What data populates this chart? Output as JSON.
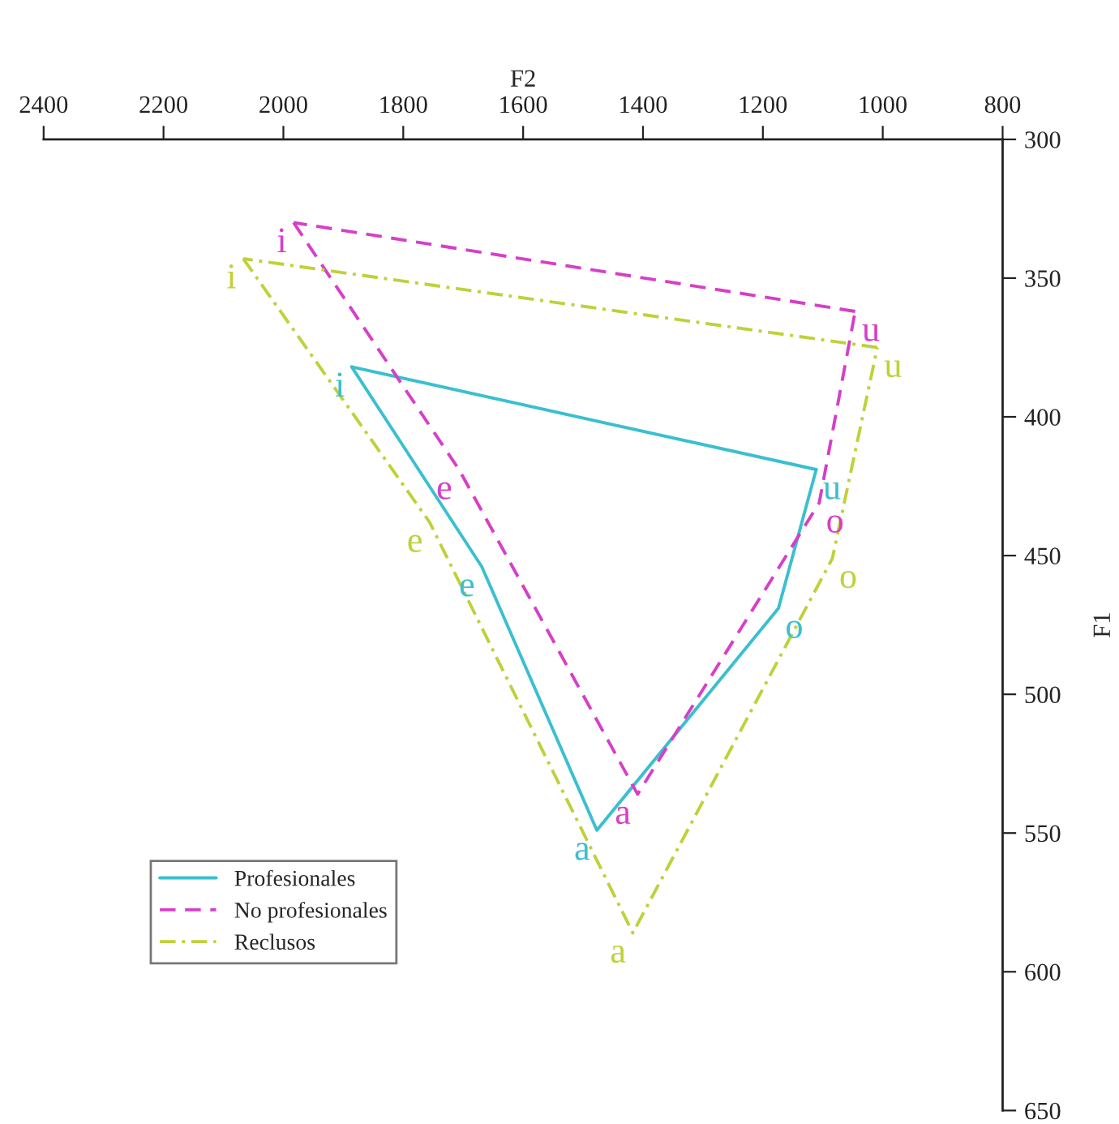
{
  "chart_data": {
    "type": "line",
    "xlabel": "F2",
    "ylabel": "F1",
    "xlim": [
      2400,
      800
    ],
    "xticks": [
      2400,
      2200,
      2000,
      1800,
      1600,
      1400,
      1200,
      1000,
      800
    ],
    "ylim": [
      650,
      300
    ],
    "yticks": [
      300,
      350,
      400,
      450,
      500,
      550,
      600,
      650
    ],
    "grid": false,
    "legend": "bottom left",
    "marker": "none",
    "series": [
      {
        "name": "Profesionales",
        "color": "#3bbfcf",
        "line_style": "solid",
        "x": [
          1886,
          1669,
          1477,
          1174,
          1111
        ],
        "values": [
          382,
          454,
          549,
          469,
          419
        ],
        "value_labels": [
          "i",
          "e",
          "a",
          "o",
          "u"
        ]
      },
      {
        "color": "#3bbfcf",
        "line_style": "solid",
        "x": [
          1111,
          1886
        ],
        "values": [
          419,
          382
        ]
      },
      {
        "name": "No profesionales",
        "color": "#d63fc8",
        "line_style": "dashed",
        "x": [
          1983,
          1707,
          1409,
          1106,
          1046
        ],
        "values": [
          330,
          419,
          536,
          431,
          362
        ],
        "value_labels": [
          "i",
          "e",
          "a",
          "o",
          "u"
        ]
      },
      {
        "color": "#d63fc8",
        "line_style": "dashed",
        "x": [
          1046,
          1983
        ],
        "values": [
          362,
          330
        ]
      },
      {
        "name": "Reclusos",
        "color": "#bfd13a",
        "line_style": "dashdot",
        "x": [
          2067,
          1756,
          1417,
          1084,
          1009
        ],
        "values": [
          343,
          438,
          586,
          451,
          375
        ],
        "value_labels": [
          "i",
          "e",
          "a",
          "o",
          "u"
        ]
      },
      {
        "color": "#bfd13a",
        "line_style": "dashdot",
        "x": [
          1009,
          2067
        ],
        "values": [
          375,
          343
        ]
      }
    ]
  }
}
